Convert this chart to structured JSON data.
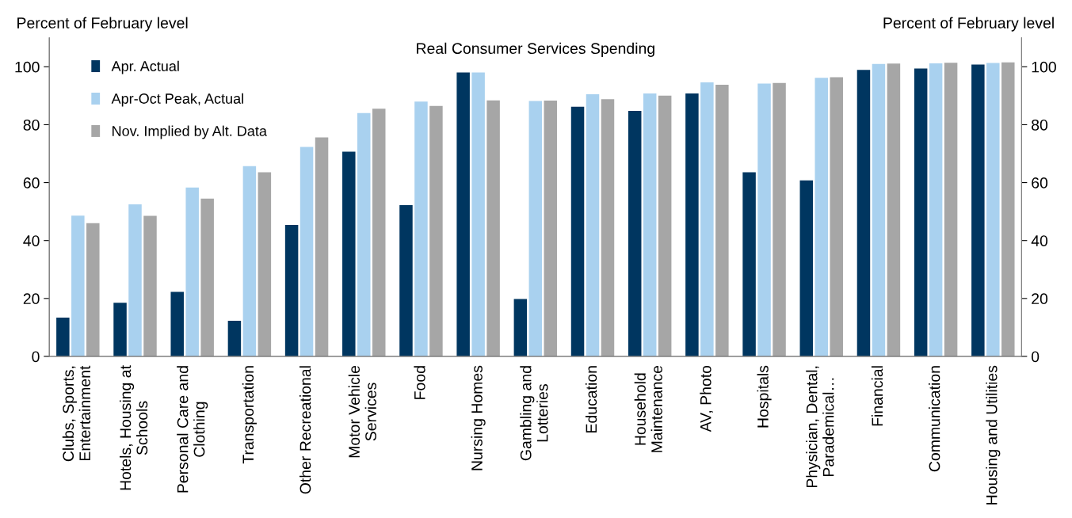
{
  "chart_data": {
    "type": "bar",
    "title": "Real Consumer Services Spending",
    "ylabel": "Percent of February level",
    "y2label": "Percent of February level",
    "categories": [
      "Clubs, Sports,\nEntertainment",
      "Hotels, Housing at\nSchools",
      "Personal Care and\nClothing",
      "Transportation",
      "Other Recreational",
      "Motor Vehicle\nServices",
      "Food",
      "Nursing Homes",
      "Gambling and\nLotteries",
      "Education",
      "Household\nMaintenance",
      "AV, Photo",
      "Hospitals",
      "Physician, Dental,\nParademical…",
      "Financial",
      "Communication",
      "Housing and Utilities"
    ],
    "series": [
      {
        "name": "Apr. Actual",
        "color": "#003660",
        "values": [
          13.4,
          18.5,
          22.3,
          12.3,
          45.4,
          70.7,
          52.2,
          98,
          19.8,
          86.2,
          84.8,
          90.8,
          63.6,
          60.8,
          98.9,
          99.4,
          100.8
        ]
      },
      {
        "name": "Apr-Oct Peak, Actual",
        "color": "#a9d1ef",
        "values": [
          48.6,
          52.5,
          58.3,
          65.7,
          72.3,
          84,
          88,
          98,
          88.2,
          90.5,
          90.8,
          94.6,
          94.2,
          96.2,
          101,
          101.2,
          101.3
        ]
      },
      {
        "name": "Nov. Implied by Alt. Data",
        "color": "#a6a6a6",
        "values": [
          46,
          48.5,
          54.5,
          63.6,
          75.6,
          85.5,
          86.5,
          88.4,
          88.3,
          88.8,
          90,
          93.8,
          94.4,
          96.4,
          101.1,
          101.4,
          101.5
        ]
      }
    ],
    "ylim": [
      0,
      110
    ],
    "yticks": [
      0,
      20,
      40,
      60,
      80,
      100
    ],
    "y2lim": [
      0,
      110
    ],
    "y2ticks": [
      0,
      20,
      40,
      60,
      80,
      100
    ],
    "grid": false,
    "legend": "top left"
  }
}
